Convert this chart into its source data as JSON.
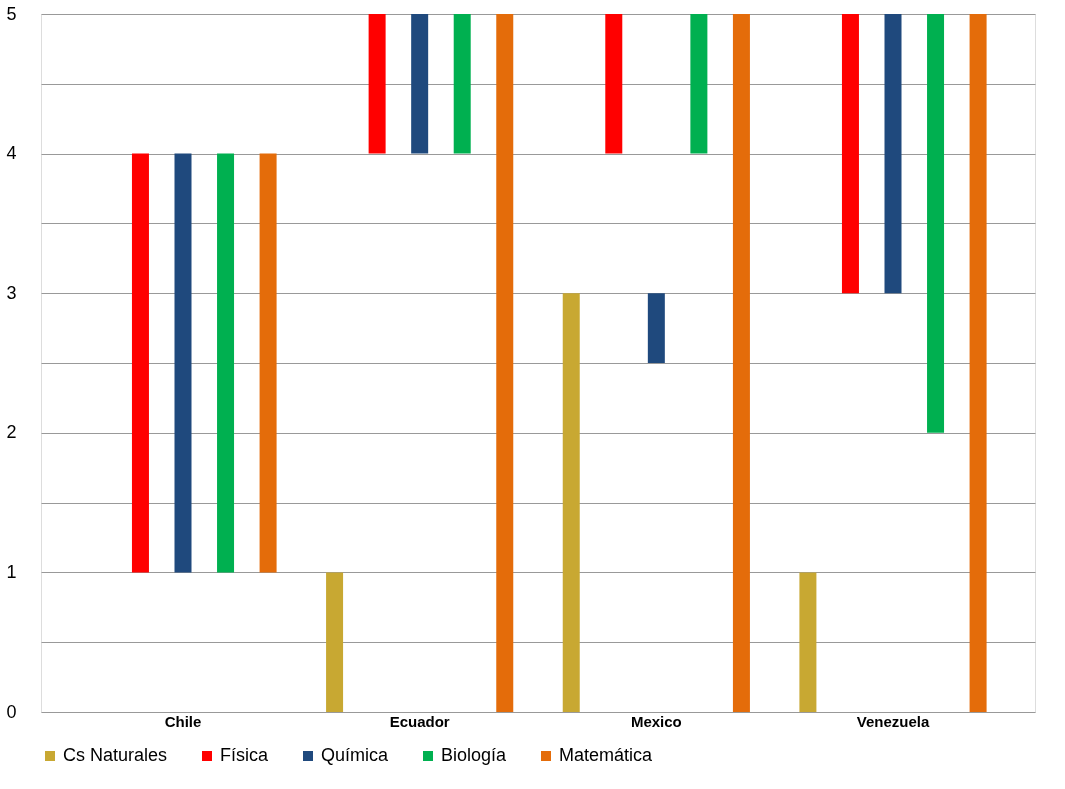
{
  "chart_data": {
    "type": "bar",
    "categories": [
      "Chile",
      "Ecuador",
      "Mexico",
      "Venezuela"
    ],
    "series": [
      {
        "name": "Cs Naturales",
        "color": "#c8a832",
        "values": [
          null,
          1,
          3,
          1
        ],
        "base": [
          null,
          0,
          0,
          0
        ]
      },
      {
        "name": "Física",
        "color": "#ff0000",
        "values": [
          3,
          1,
          1,
          2
        ],
        "base": [
          1,
          4,
          4,
          3
        ]
      },
      {
        "name": "Química",
        "color": "#1f497d",
        "values": [
          3,
          1,
          0.5,
          2
        ],
        "base": [
          1,
          4,
          2.5,
          3
        ]
      },
      {
        "name": "Biología",
        "color": "#00b050",
        "values": [
          3,
          1,
          1,
          3
        ],
        "base": [
          1,
          4,
          4,
          2
        ]
      },
      {
        "name": "Matemática",
        "color": "#e46c0a",
        "values": [
          3,
          5,
          5,
          5
        ],
        "base": [
          1,
          0,
          0,
          0
        ]
      }
    ],
    "ylim": [
      0,
      5
    ],
    "yticks": [
      0,
      {
        "value": 0.5,
        "label": null
      },
      1,
      {
        "value": 1.5,
        "label": null
      },
      2,
      {
        "value": 2.5,
        "label": null
      },
      3,
      {
        "value": 3.5,
        "label": null
      },
      4,
      {
        "value": 4.5,
        "label": null
      },
      5
    ],
    "grid": "y",
    "legend": "bottom"
  }
}
